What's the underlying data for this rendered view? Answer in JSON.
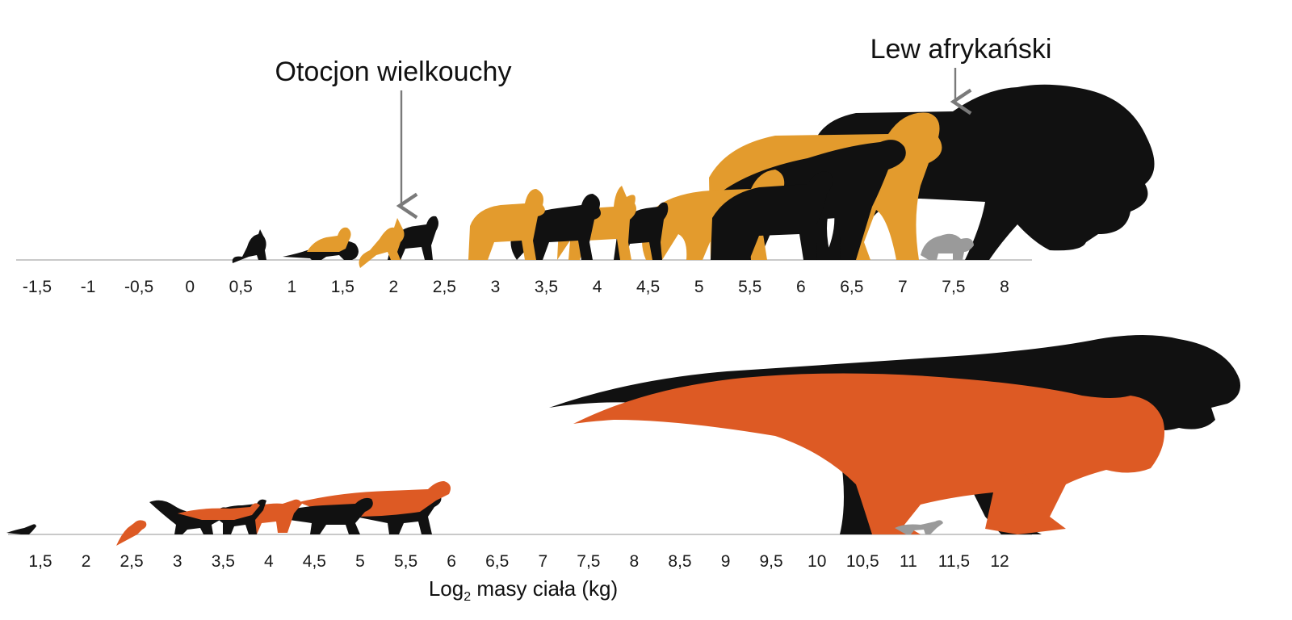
{
  "colors": {
    "black": "#111111",
    "mustard": "#e39b2d",
    "orange": "#dd5a24",
    "gray": "#9a9a9a",
    "baseline": "#c9c9c9",
    "arrow": "#7a7a7a"
  },
  "callouts": {
    "fennec": "Otocjon wielkouchy",
    "lion": "Lew afrykański"
  },
  "x_label": {
    "main": "Log",
    "sub": "2",
    "rest": " masy ciała (kg)"
  },
  "chart_data": [
    {
      "type": "scatter",
      "panel": "mammals",
      "title": "",
      "x_ticks": [
        "-1,5",
        "-1",
        "-0,5",
        "0",
        "0,5",
        "1",
        "1,5",
        "2",
        "2,5",
        "3",
        "3,5",
        "4",
        "4,5",
        "5",
        "5,5",
        "6",
        "6,5",
        "7",
        "7,5",
        "8"
      ],
      "xlim": [
        -1.5,
        8
      ],
      "grid": false,
      "legend": "none",
      "annotations": [
        {
          "text": "Otocjon wielkouchy",
          "x": 2
        },
        {
          "text": "Lew afrykański",
          "x": 7.5
        }
      ],
      "silhouettes": [
        {
          "x": 0.5,
          "size": 1.0,
          "color": "black",
          "kind": "cat"
        },
        {
          "x": 1.3,
          "size": 1.1,
          "color": "mustard",
          "kind": "canid"
        },
        {
          "x": 1.5,
          "size": 1.0,
          "color": "black",
          "kind": "mustelid"
        },
        {
          "x": 1.9,
          "size": 1.2,
          "color": "mustard",
          "kind": "fox"
        },
        {
          "x": 2.2,
          "size": 1.3,
          "color": "black",
          "kind": "fox"
        },
        {
          "x": 3.0,
          "size": 2.0,
          "color": "mustard",
          "kind": "jackal"
        },
        {
          "x": 3.6,
          "size": 2.1,
          "color": "black",
          "kind": "jackal"
        },
        {
          "x": 4.1,
          "size": 2.3,
          "color": "mustard",
          "kind": "caracal"
        },
        {
          "x": 4.6,
          "size": 2.4,
          "color": "black",
          "kind": "canid"
        },
        {
          "x": 5.0,
          "size": 2.8,
          "color": "mustard",
          "kind": "hyena"
        },
        {
          "x": 5.6,
          "size": 3.0,
          "color": "black",
          "kind": "hyena"
        },
        {
          "x": 6.0,
          "size": 4.0,
          "color": "mustard",
          "kind": "cat"
        },
        {
          "x": 6.5,
          "size": 4.2,
          "color": "black",
          "kind": "cat"
        },
        {
          "x": 7.0,
          "size": 5.0,
          "color": "mustard",
          "kind": "bear"
        },
        {
          "x": 7.5,
          "size": 1.0,
          "color": "gray",
          "kind": "cub"
        },
        {
          "x": 8.0,
          "size": 6.0,
          "color": "black",
          "kind": "lion"
        }
      ]
    },
    {
      "type": "scatter",
      "panel": "dinosaurs",
      "title": "",
      "x_ticks": [
        "1,5",
        "2",
        "2,5",
        "3",
        "3,5",
        "4",
        "4,5",
        "5",
        "5,5",
        "6",
        "6,5",
        "7",
        "7,5",
        "8",
        "8,5",
        "9",
        "9,5",
        "10",
        "10,5",
        "11",
        "11,5",
        "12"
      ],
      "xlim": [
        1.5,
        12
      ],
      "xlabel": "Log₂ masy ciała (kg)",
      "grid": false,
      "legend": "none",
      "silhouettes": [
        {
          "x": 1.5,
          "size": 0.6,
          "color": "black",
          "kind": "lizard"
        },
        {
          "x": 2.5,
          "size": 1.0,
          "color": "orange",
          "kind": "theropod-small"
        },
        {
          "x": 3.0,
          "size": 1.6,
          "color": "black",
          "kind": "theropod-small"
        },
        {
          "x": 3.5,
          "size": 1.6,
          "color": "black",
          "kind": "theropod-small"
        },
        {
          "x": 4.0,
          "size": 1.7,
          "color": "orange",
          "kind": "theropod-small"
        },
        {
          "x": 4.5,
          "size": 1.9,
          "color": "black",
          "kind": "theropod-small"
        },
        {
          "x": 5.0,
          "size": 2.0,
          "color": "orange",
          "kind": "theropod-small"
        },
        {
          "x": 5.5,
          "size": 2.1,
          "color": "black",
          "kind": "theropod-small"
        },
        {
          "x": 10.5,
          "size": 9.0,
          "color": "black",
          "kind": "tyrannosaur"
        },
        {
          "x": 10.5,
          "size": 8.0,
          "color": "orange",
          "kind": "tyrannosaur"
        },
        {
          "x": 11.0,
          "size": 0.6,
          "color": "gray",
          "kind": "hatchling"
        }
      ]
    }
  ]
}
